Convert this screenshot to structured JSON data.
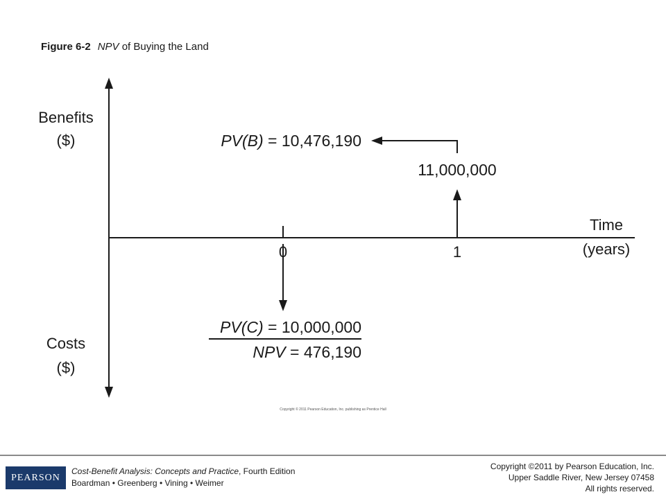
{
  "caption": {
    "figure_label": "Figure 6-2",
    "title_italic": "NPV",
    "title_rest": " of Buying the Land"
  },
  "diagram": {
    "y_top_label": [
      "Benefits",
      "($)"
    ],
    "y_bottom_label": [
      "Costs",
      "($)"
    ],
    "x_label": [
      "Time",
      "(years)"
    ],
    "tick_0": "0",
    "tick_1": "1",
    "benefit_amount": "11,000,000",
    "pvb": {
      "lhs": "PV(B)",
      "rhs": " = 10,476,190"
    },
    "pvc": {
      "lhs": "PV(C)",
      "rhs": " = 10,000,000"
    },
    "npv": {
      "lhs": "NPV",
      "rhs": " = 476,190"
    },
    "diagram_credit": "Copyright © 2011 Pearson Education, Inc. publishing as Prentice Hall"
  },
  "footer": {
    "logo": "PEARSON",
    "book_title": "Cost-Benefit Analysis: Concepts and Practice",
    "edition": ", Fourth Edition",
    "authors": "Boardman • Greenberg • Vining • Weimer",
    "copyright": [
      "Copyright ©2011 by Pearson Education, Inc.",
      "Upper Saddle River, New Jersey 07458",
      "All rights reserved."
    ]
  }
}
